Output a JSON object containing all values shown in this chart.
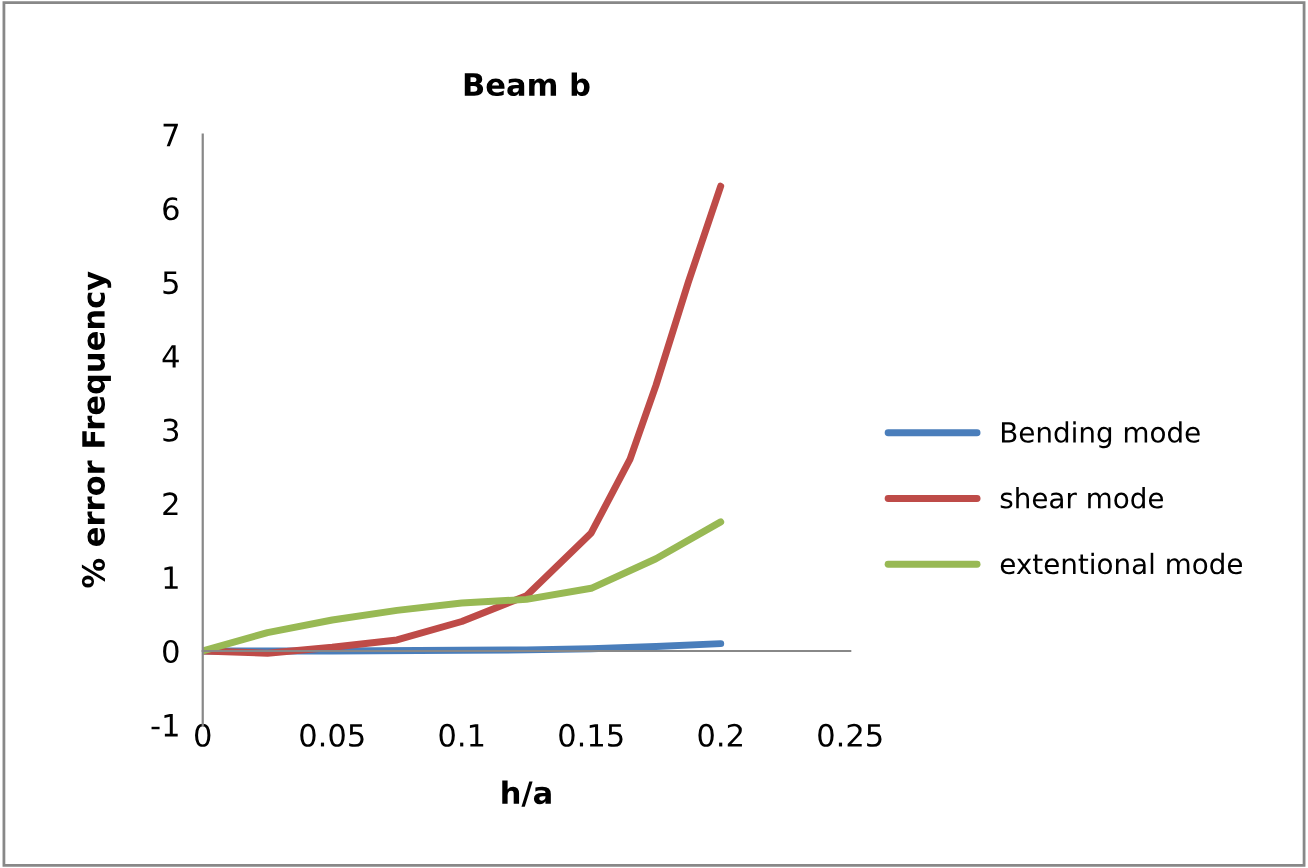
{
  "chart_data": {
    "type": "line",
    "title": "Beam b",
    "xlabel": "h/a",
    "ylabel": "% error Frequency",
    "xlim": [
      0,
      0.25
    ],
    "xticks": [
      0,
      0.05,
      0.1,
      0.15,
      0.2,
      0.25
    ],
    "ylim": [
      -1,
      7
    ],
    "yticks": [
      -1,
      0,
      1,
      2,
      3,
      4,
      5,
      6,
      7
    ],
    "grid": false,
    "legend": "right",
    "marker": "none",
    "line_style": "solid",
    "series": [
      {
        "name": "Bending mode",
        "color": "#4a7ebb",
        "x": [
          0,
          0.05,
          0.1,
          0.125,
          0.15,
          0.175,
          0.2
        ],
        "values": [
          0,
          0.0,
          0.01,
          0.015,
          0.03,
          0.06,
          0.1
        ]
      },
      {
        "name": "shear mode",
        "color": "#be4b48",
        "x": [
          0,
          0.025,
          0.05,
          0.075,
          0.1,
          0.125,
          0.15,
          0.165,
          0.175,
          0.1875,
          0.2
        ],
        "values": [
          0,
          -0.03,
          0.05,
          0.15,
          0.4,
          0.75,
          1.6,
          2.6,
          3.6,
          5.0,
          6.3
        ]
      },
      {
        "name": "extentional mode",
        "color": "#98b954",
        "x": [
          0,
          0.025,
          0.05,
          0.075,
          0.1,
          0.125,
          0.15,
          0.175,
          0.2
        ],
        "values": [
          0,
          0.25,
          0.42,
          0.55,
          0.65,
          0.7,
          0.85,
          1.25,
          1.75
        ]
      }
    ]
  }
}
